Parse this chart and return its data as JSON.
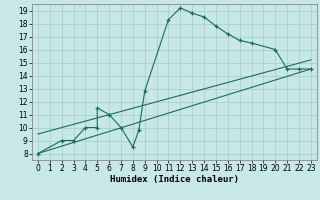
{
  "title": "",
  "xlabel": "Humidex (Indice chaleur)",
  "ylabel": "",
  "bg_color": "#c8e8e8",
  "line_color": "#1a6b5a",
  "xlim": [
    -0.5,
    23.5
  ],
  "ylim": [
    7.5,
    19.5
  ],
  "xticks": [
    0,
    1,
    2,
    3,
    4,
    5,
    6,
    7,
    8,
    9,
    10,
    11,
    12,
    13,
    14,
    15,
    16,
    17,
    18,
    19,
    20,
    21,
    22,
    23
  ],
  "yticks": [
    8,
    9,
    10,
    11,
    12,
    13,
    14,
    15,
    16,
    17,
    18,
    19
  ],
  "series1_x": [
    0,
    2,
    3,
    4,
    5,
    5,
    6,
    7,
    8,
    8.5,
    9,
    11,
    12,
    13,
    14,
    15,
    16,
    17,
    18,
    20,
    21,
    22,
    23
  ],
  "series1_y": [
    8,
    9,
    9,
    10,
    10,
    11.5,
    11,
    10,
    8.5,
    9.8,
    12.8,
    18.3,
    19.2,
    18.8,
    18.5,
    17.8,
    17.2,
    16.7,
    16.5,
    16,
    14.5,
    14.5,
    14.5
  ],
  "series2_x": [
    0,
    23
  ],
  "series2_y": [
    8.0,
    14.5
  ],
  "series3_x": [
    0,
    23
  ],
  "series3_y": [
    9.5,
    15.2
  ],
  "grid_color": "#a0cccc",
  "tick_fontsize": 5.5,
  "xlabel_fontsize": 6.5
}
